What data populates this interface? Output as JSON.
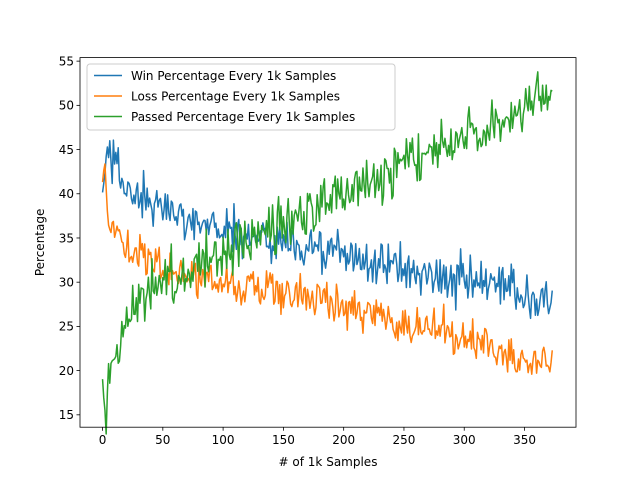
{
  "chart_data": {
    "type": "line",
    "title": "",
    "xlabel": "# of 1k Samples",
    "ylabel": "Percentage",
    "xlim": [
      -18.7,
      392.7
    ],
    "ylim": [
      13.6,
      55.4
    ],
    "xticks": [
      0,
      50,
      100,
      150,
      200,
      250,
      300,
      350
    ],
    "yticks": [
      15,
      20,
      25,
      30,
      35,
      40,
      45,
      50,
      55
    ],
    "grid": false,
    "legend": "top-left",
    "n_points": 374,
    "series": [
      {
        "name": "Win Percentage Every 1k Samples",
        "color": "#1f77b4",
        "anchors": [
          [
            0,
            40.0
          ],
          [
            4,
            45.0
          ],
          [
            10,
            43.5
          ],
          [
            20,
            40.5
          ],
          [
            40,
            38.5
          ],
          [
            60,
            38.0
          ],
          [
            80,
            37.0
          ],
          [
            100,
            36.0
          ],
          [
            130,
            35.0
          ],
          [
            160,
            34.3
          ],
          [
            200,
            33.0
          ],
          [
            250,
            31.5
          ],
          [
            300,
            30.0
          ],
          [
            340,
            29.0
          ],
          [
            370,
            28.0
          ],
          [
            373,
            28.3
          ]
        ],
        "noise": 1.3
      },
      {
        "name": "Loss Percentage Every 1k Samples",
        "color": "#ff7f0e",
        "anchors": [
          [
            0,
            41.5
          ],
          [
            2,
            43.5
          ],
          [
            5,
            38.0
          ],
          [
            10,
            36.0
          ],
          [
            20,
            34.0
          ],
          [
            40,
            32.0
          ],
          [
            60,
            31.0
          ],
          [
            80,
            30.5
          ],
          [
            100,
            30.0
          ],
          [
            130,
            29.5
          ],
          [
            160,
            28.5
          ],
          [
            200,
            27.5
          ],
          [
            250,
            25.5
          ],
          [
            300,
            23.5
          ],
          [
            340,
            22.0
          ],
          [
            373,
            21.0
          ]
        ],
        "noise": 1.2
      },
      {
        "name": "Passed Percentage Every 1k Samples",
        "color": "#2ca02c",
        "anchors": [
          [
            0,
            19.0
          ],
          [
            2,
            15.2
          ],
          [
            5,
            18.5
          ],
          [
            10,
            21.0
          ],
          [
            20,
            25.5
          ],
          [
            30,
            28.5
          ],
          [
            50,
            30.5
          ],
          [
            80,
            32.0
          ],
          [
            100,
            33.5
          ],
          [
            130,
            35.0
          ],
          [
            160,
            37.0
          ],
          [
            200,
            40.0
          ],
          [
            250,
            43.5
          ],
          [
            300,
            46.5
          ],
          [
            340,
            49.0
          ],
          [
            373,
            51.0
          ]
        ],
        "noise": 1.5
      }
    ]
  }
}
